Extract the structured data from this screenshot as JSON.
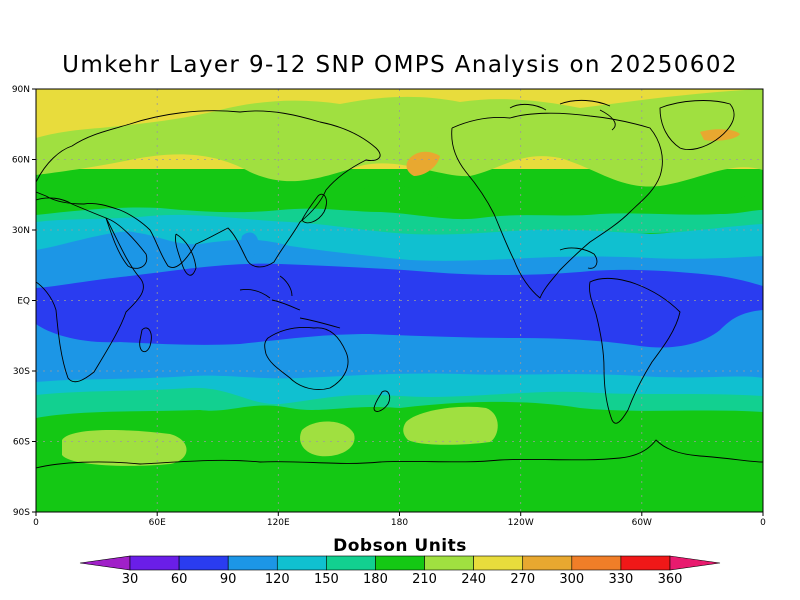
{
  "title": "Umkehr Layer 9-12 SNP OMPS Analysis on 20250602",
  "map": {
    "projection": "cylindrical equidistant",
    "lon_range": [
      0,
      360
    ],
    "lat_range": [
      -90,
      90
    ],
    "lat_ticks": [
      "90N",
      "60N",
      "30N",
      "EQ",
      "30S",
      "60S",
      "90S"
    ],
    "lon_ticks": [
      "0",
      "60E",
      "120E",
      "180",
      "120W",
      "60W",
      "0"
    ],
    "grid": true
  },
  "colorbar": {
    "title": "Dobson Units",
    "tick_labels": [
      "30",
      "60",
      "90",
      "120",
      "150",
      "180",
      "210",
      "240",
      "270",
      "300",
      "330",
      "360"
    ],
    "colors": [
      "#a020c8",
      "#6a1ee8",
      "#2a3cf0",
      "#1c96e6",
      "#10c0d0",
      "#12d090",
      "#14c814",
      "#a0e040",
      "#e8dc3c",
      "#e8a830",
      "#f07e28",
      "#f01818",
      "#e81a6e"
    ]
  },
  "chart_data": {
    "type": "heatmap",
    "title": "Umkehr Layer 9-12 SNP OMPS Analysis on 20250602",
    "units": "Dobson Units",
    "x_range": [
      0,
      360
    ],
    "y_range": [
      -90,
      90
    ],
    "levels": [
      30,
      60,
      90,
      120,
      150,
      180,
      210,
      240,
      270,
      300,
      330,
      360
    ],
    "zonal_pattern": [
      {
        "lat_range": [
          60,
          90
        ],
        "approx_DU": "240-270"
      },
      {
        "lat_range": [
          45,
          60
        ],
        "approx_DU": "210-240"
      },
      {
        "lat_range": [
          35,
          45
        ],
        "approx_DU": "180-210"
      },
      {
        "lat_range": [
          20,
          35
        ],
        "approx_DU": "120-180"
      },
      {
        "lat_range": [
          10,
          20
        ],
        "approx_DU": "90-120"
      },
      {
        "lat_range": [
          -20,
          10
        ],
        "approx_DU": "60-90"
      },
      {
        "lat_range": [
          -35,
          -20
        ],
        "approx_DU": "90-120"
      },
      {
        "lat_range": [
          -50,
          -35
        ],
        "approx_DU": "120-180"
      },
      {
        "lat_range": [
          -90,
          -50
        ],
        "approx_DU": "180-210"
      }
    ]
  }
}
